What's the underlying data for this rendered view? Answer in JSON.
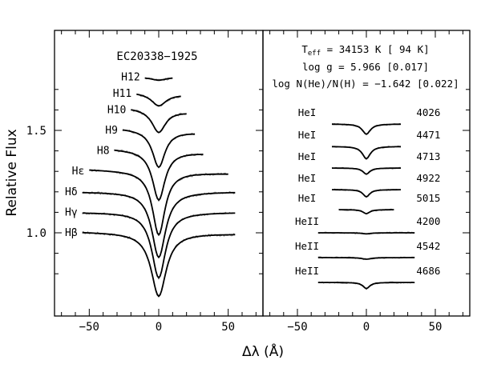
{
  "chart_data": [
    {
      "type": "line",
      "title": "EC20338−1925",
      "xlabel": "Δλ (Å)",
      "ylabel": "Relative Flux",
      "xlim": [
        -75,
        75
      ],
      "ylim": [
        0.7,
        1.8
      ],
      "xticks": [
        -50,
        0,
        50
      ],
      "xtick_labels": [
        "−50",
        "0",
        "50"
      ],
      "yticks": [
        1.0,
        1.5
      ],
      "ytick_labels": [
        "1.0",
        "1.5"
      ],
      "series": [
        {
          "name": "Hβ",
          "offset": 1.0,
          "xrange": [
            -55,
            55
          ],
          "depth": 0.31,
          "width": 6.5,
          "tilt": -0.01
        },
        {
          "name": "Hγ",
          "offset": 1.1,
          "xrange": [
            -55,
            55
          ],
          "depth": 0.32,
          "width": 6.0,
          "tilt": 0.0
        },
        {
          "name": "Hδ",
          "offset": 1.2,
          "xrange": [
            -55,
            55
          ],
          "depth": 0.32,
          "width": 6.0,
          "tilt": 0.0
        },
        {
          "name": "Hε",
          "offset": 1.3,
          "xrange": [
            -50,
            50
          ],
          "depth": 0.31,
          "width": 5.5,
          "tilt": -0.02
        },
        {
          "name": "H8",
          "offset": 1.4,
          "xrange": [
            -32,
            32
          ],
          "depth": 0.24,
          "width": 5.5,
          "tilt": -0.02
        },
        {
          "name": "H9",
          "offset": 1.5,
          "xrange": [
            -26,
            26
          ],
          "depth": 0.18,
          "width": 5.5,
          "tilt": -0.02
        },
        {
          "name": "H10",
          "offset": 1.6,
          "xrange": [
            -20,
            20
          ],
          "depth": 0.11,
          "width": 6.0,
          "tilt": -0.02
        },
        {
          "name": "H11",
          "offset": 1.68,
          "xrange": [
            -16,
            16
          ],
          "depth": 0.06,
          "width": 6.5,
          "tilt": -0.01
        },
        {
          "name": "H12",
          "offset": 1.76,
          "xrange": [
            -10,
            10
          ],
          "depth": 0.015,
          "width": 6.5,
          "tilt": 0.0
        }
      ]
    },
    {
      "type": "line",
      "annotations": [
        "T_eff = 34153 K [  94 K]",
        "log g = 5.966 [0.017]",
        "log N(He)/N(H) = −1.642 [0.022]"
      ],
      "xlabel": "Δλ (Å)",
      "xlim": [
        -75,
        75
      ],
      "xticks": [
        -50,
        0,
        50
      ],
      "xtick_labels": [
        "−50",
        "0",
        "50"
      ],
      "series": [
        {
          "name": "HeI",
          "wavelength": "4026",
          "offset": 1.265,
          "xrange": [
            -25,
            25
          ],
          "depth": 0.05,
          "width": 3.5
        },
        {
          "name": "HeI",
          "wavelength": "4471",
          "offset": 1.155,
          "xrange": [
            -25,
            25
          ],
          "depth": 0.06,
          "width": 3.5
        },
        {
          "name": "HeI",
          "wavelength": "4713",
          "offset": 1.04,
          "xrange": [
            -25,
            25
          ],
          "depth": 0.03,
          "width": 3.0
        },
        {
          "name": "HeI",
          "wavelength": "4922",
          "offset": 0.925,
          "xrange": [
            -25,
            25
          ],
          "depth": 0.035,
          "width": 3.0
        },
        {
          "name": "HeI",
          "wavelength": "5015",
          "offset": 0.83,
          "xrange": [
            -20,
            20
          ],
          "depth": 0.02,
          "width": 3.0
        },
        {
          "name": "HeII",
          "wavelength": "4200",
          "offset": 0.685,
          "xrange": [
            -35,
            35
          ],
          "depth": 0.005,
          "width": 4.0
        },
        {
          "name": "HeII",
          "wavelength": "4542",
          "offset": 0.565,
          "xrange": [
            -35,
            35
          ],
          "depth": 0.008,
          "width": 4.0
        },
        {
          "name": "HeII",
          "wavelength": "4686",
          "offset": 0.45,
          "xrange": [
            -35,
            35
          ],
          "depth": 0.03,
          "width": 3.0
        }
      ]
    }
  ]
}
